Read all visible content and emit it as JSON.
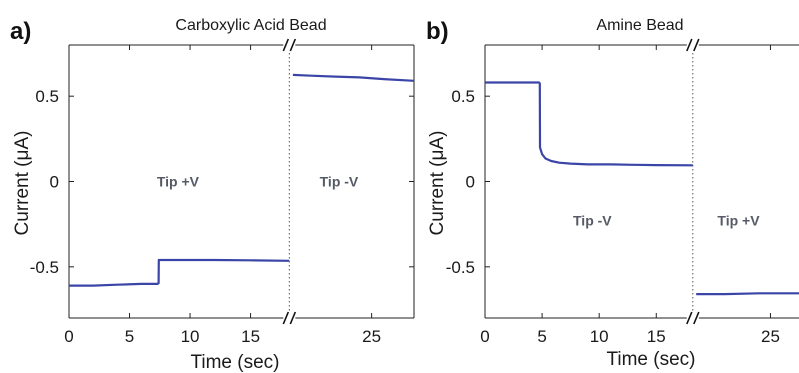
{
  "chart_data": [
    {
      "panel_label": "a)",
      "type": "line",
      "title": "Carboxylic Acid Bead",
      "xlabel": "Time (sec)",
      "ylabel": "Current (μA)",
      "xlim": [
        0,
        28.5
      ],
      "ylim": [
        -0.8,
        0.8
      ],
      "x_break_at": 18.2,
      "xticks": [
        0,
        5,
        10,
        15,
        25
      ],
      "xtick_labels": [
        "0",
        "5",
        "10",
        "15",
        "25"
      ],
      "yticks": [
        0.5,
        0,
        -0.5
      ],
      "ytick_labels": [
        "0.5",
        "0",
        "-0.5"
      ],
      "line_color": "#3b45a8",
      "regions": [
        {
          "label": "Tip +V",
          "x": 9.0,
          "y": 0.0
        },
        {
          "label": "Tip -V",
          "x": 22.3,
          "y": 0.0
        }
      ],
      "series": [
        {
          "x": [
            0,
            2,
            4,
            6,
            7.4
          ],
          "y": [
            -0.61,
            -0.61,
            -0.605,
            -0.6,
            -0.6
          ]
        },
        {
          "x": [
            7.4,
            7.42,
            9,
            12,
            15,
            18.2
          ],
          "y": [
            -0.6,
            -0.46,
            -0.46,
            -0.46,
            -0.462,
            -0.465
          ]
        },
        {
          "x": [
            18.5,
            20,
            22,
            24,
            26,
            28.5
          ],
          "y": [
            0.625,
            0.62,
            0.615,
            0.61,
            0.6,
            0.59
          ]
        }
      ]
    },
    {
      "panel_label": "b)",
      "type": "line",
      "title": "Amine Bead",
      "xlabel": "Time (sec)",
      "ylabel": "Current (μA)",
      "xlim": [
        0,
        27.5
      ],
      "ylim": [
        -0.8,
        0.8
      ],
      "x_break_at": 18.2,
      "xticks": [
        0,
        5,
        10,
        15,
        25
      ],
      "xtick_labels": [
        "0",
        "5",
        "10",
        "15",
        "25"
      ],
      "yticks": [
        0.5,
        0,
        -0.5
      ],
      "ytick_labels": [
        "0.5",
        "0",
        "-0.5"
      ],
      "line_color": "#3b45a8",
      "regions": [
        {
          "label": "Tip -V",
          "x": 9.4,
          "y": -0.23
        },
        {
          "label": "Tip +V",
          "x": 22.2,
          "y": -0.23
        }
      ],
      "series": [
        {
          "x": [
            0,
            2,
            4,
            4.8
          ],
          "y": [
            0.58,
            0.58,
            0.58,
            0.58
          ]
        },
        {
          "x": [
            4.8,
            4.82,
            5.0,
            5.3,
            5.8,
            6.5,
            7.5,
            9,
            11,
            13,
            15,
            18.2
          ],
          "y": [
            0.58,
            0.2,
            0.16,
            0.135,
            0.12,
            0.11,
            0.105,
            0.1,
            0.1,
            0.098,
            0.096,
            0.095
          ]
        },
        {
          "x": [
            18.5,
            21,
            24,
            27.5
          ],
          "y": [
            -0.66,
            -0.66,
            -0.655,
            -0.655
          ]
        }
      ]
    }
  ]
}
